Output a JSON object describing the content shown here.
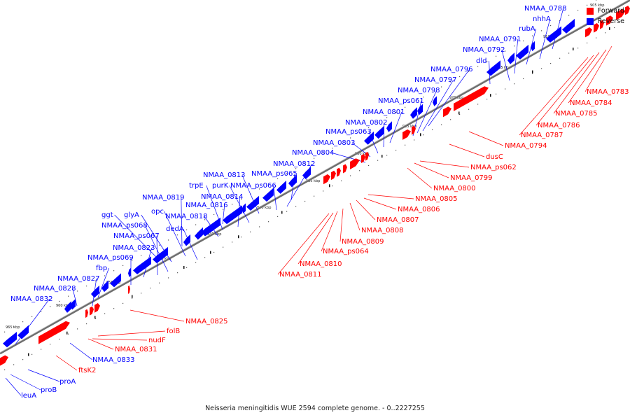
{
  "caption": "Neisseria meningitidis WUE 2594 complete genome. - 0..2227255",
  "colors": {
    "forward": "#ff0000",
    "reverse": "#0000ff",
    "backbone": "#808080"
  },
  "legend": [
    {
      "label": "Forward",
      "color": "#ff0000"
    },
    {
      "label": "Reverse",
      "color": "#0000ff"
    }
  ],
  "scale_ticks": [
    "965 kbp",
    "960 kbp",
    "955 kbp",
    "950 kbp",
    "945 kbp",
    "940 kbp",
    "935 kbp",
    "930 kbp",
    "925 kbp",
    "920 kbp",
    "915 kbp",
    "910 kbp",
    "905 kbp"
  ],
  "reverse_genes": [
    "NMAA_0832",
    "NMAA_0828",
    "NMAA_0827",
    "fbp",
    "NMAA_ps069",
    "NMAA_0823",
    "NMAA_ps067",
    "NMAA_ps068",
    "ggt",
    "glyA",
    "opc",
    "dedA",
    "NMAA_0819",
    "NMAA_0818",
    "NMAA_0816",
    "NMAA_0814",
    "trpE",
    "purK",
    "NMAA_0813",
    "NMAA_ps066",
    "NMAA_0812",
    "NMAA_ps065",
    "NMAA_0804",
    "NMAA_0803",
    "NMAA_ps063",
    "NMAA_0802",
    "NMAA_0801",
    "NMAA_ps061",
    "NMAA_0798",
    "NMAA_0797",
    "NMAA_0796",
    "dld",
    "NMAA_0792",
    "NMAA_0791",
    "rubA",
    "nhhA",
    "NMAA_0788",
    "NMAA_0833",
    "proA",
    "proB",
    "leuA"
  ],
  "forward_genes": [
    "NMAA_0825",
    "folB",
    "nudF",
    "NMAA_0831",
    "ftsK2",
    "NMAA_0811",
    "NMAA_0810",
    "NMAA_ps064",
    "NMAA_0809",
    "NMAA_0808",
    "NMAA_0807",
    "NMAA_0806",
    "NMAA_0805",
    "NMAA_0800",
    "NMAA_0799",
    "NMAA_ps062",
    "dusC",
    "NMAA_0794",
    "NMAA_0787",
    "NMAA_0786",
    "NMAA_0785",
    "NMAA_0784",
    "NMAA_0783"
  ]
}
